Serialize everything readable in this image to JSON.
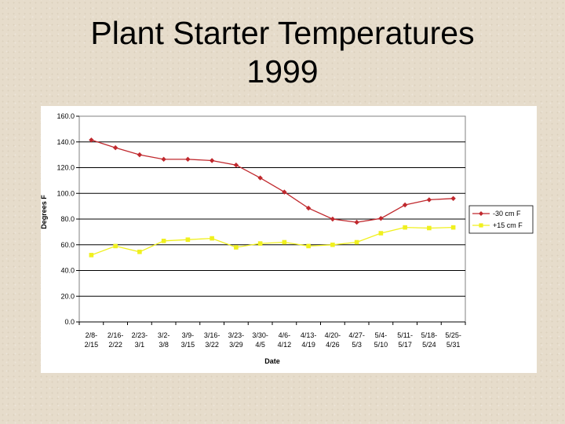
{
  "title_lines": [
    "Plant Starter Temperatures",
    "1999"
  ],
  "chart_data": {
    "type": "line",
    "title": "Plant Starter Temperatures 1999",
    "xlabel": "Date",
    "ylabel": "Degrees F",
    "ylim": [
      0,
      160
    ],
    "yticks": [
      "0.0",
      "20.0",
      "40.0",
      "60.0",
      "80.0",
      "100.0",
      "120.0",
      "140.0",
      "160.0"
    ],
    "grid": true,
    "legend_position": "right",
    "categories": [
      [
        "2/8-",
        "2/15"
      ],
      [
        "2/16-",
        "2/22"
      ],
      [
        "2/23-",
        "3/1"
      ],
      [
        "3/2-",
        "3/8"
      ],
      [
        "3/9-",
        "3/15"
      ],
      [
        "3/16-",
        "3/22"
      ],
      [
        "3/23-",
        "3/29"
      ],
      [
        "3/30-",
        "4/5"
      ],
      [
        "4/6-",
        "4/12"
      ],
      [
        "4/13-",
        "4/19"
      ],
      [
        "4/20-",
        "4/26"
      ],
      [
        "4/27-",
        "5/3"
      ],
      [
        "5/4-",
        "5/10"
      ],
      [
        "5/11-",
        "5/17"
      ],
      [
        "5/18-",
        "5/24"
      ],
      [
        "5/25-",
        "5/31"
      ]
    ],
    "series": [
      {
        "name": "-30 cm F",
        "color": "#c0282d",
        "marker": "diamond",
        "values": [
          141.5,
          135.5,
          130,
          126.5,
          126.5,
          125.5,
          122,
          112,
          101,
          88.5,
          80,
          77.5,
          80.5,
          91,
          95,
          96
        ]
      },
      {
        "name": "+15 cm F",
        "color": "#f0f01e",
        "marker": "square",
        "values": [
          52,
          59,
          54.5,
          63,
          64,
          65,
          58,
          61,
          62,
          59,
          60,
          62,
          69,
          73.5,
          73,
          73.5
        ]
      }
    ]
  }
}
